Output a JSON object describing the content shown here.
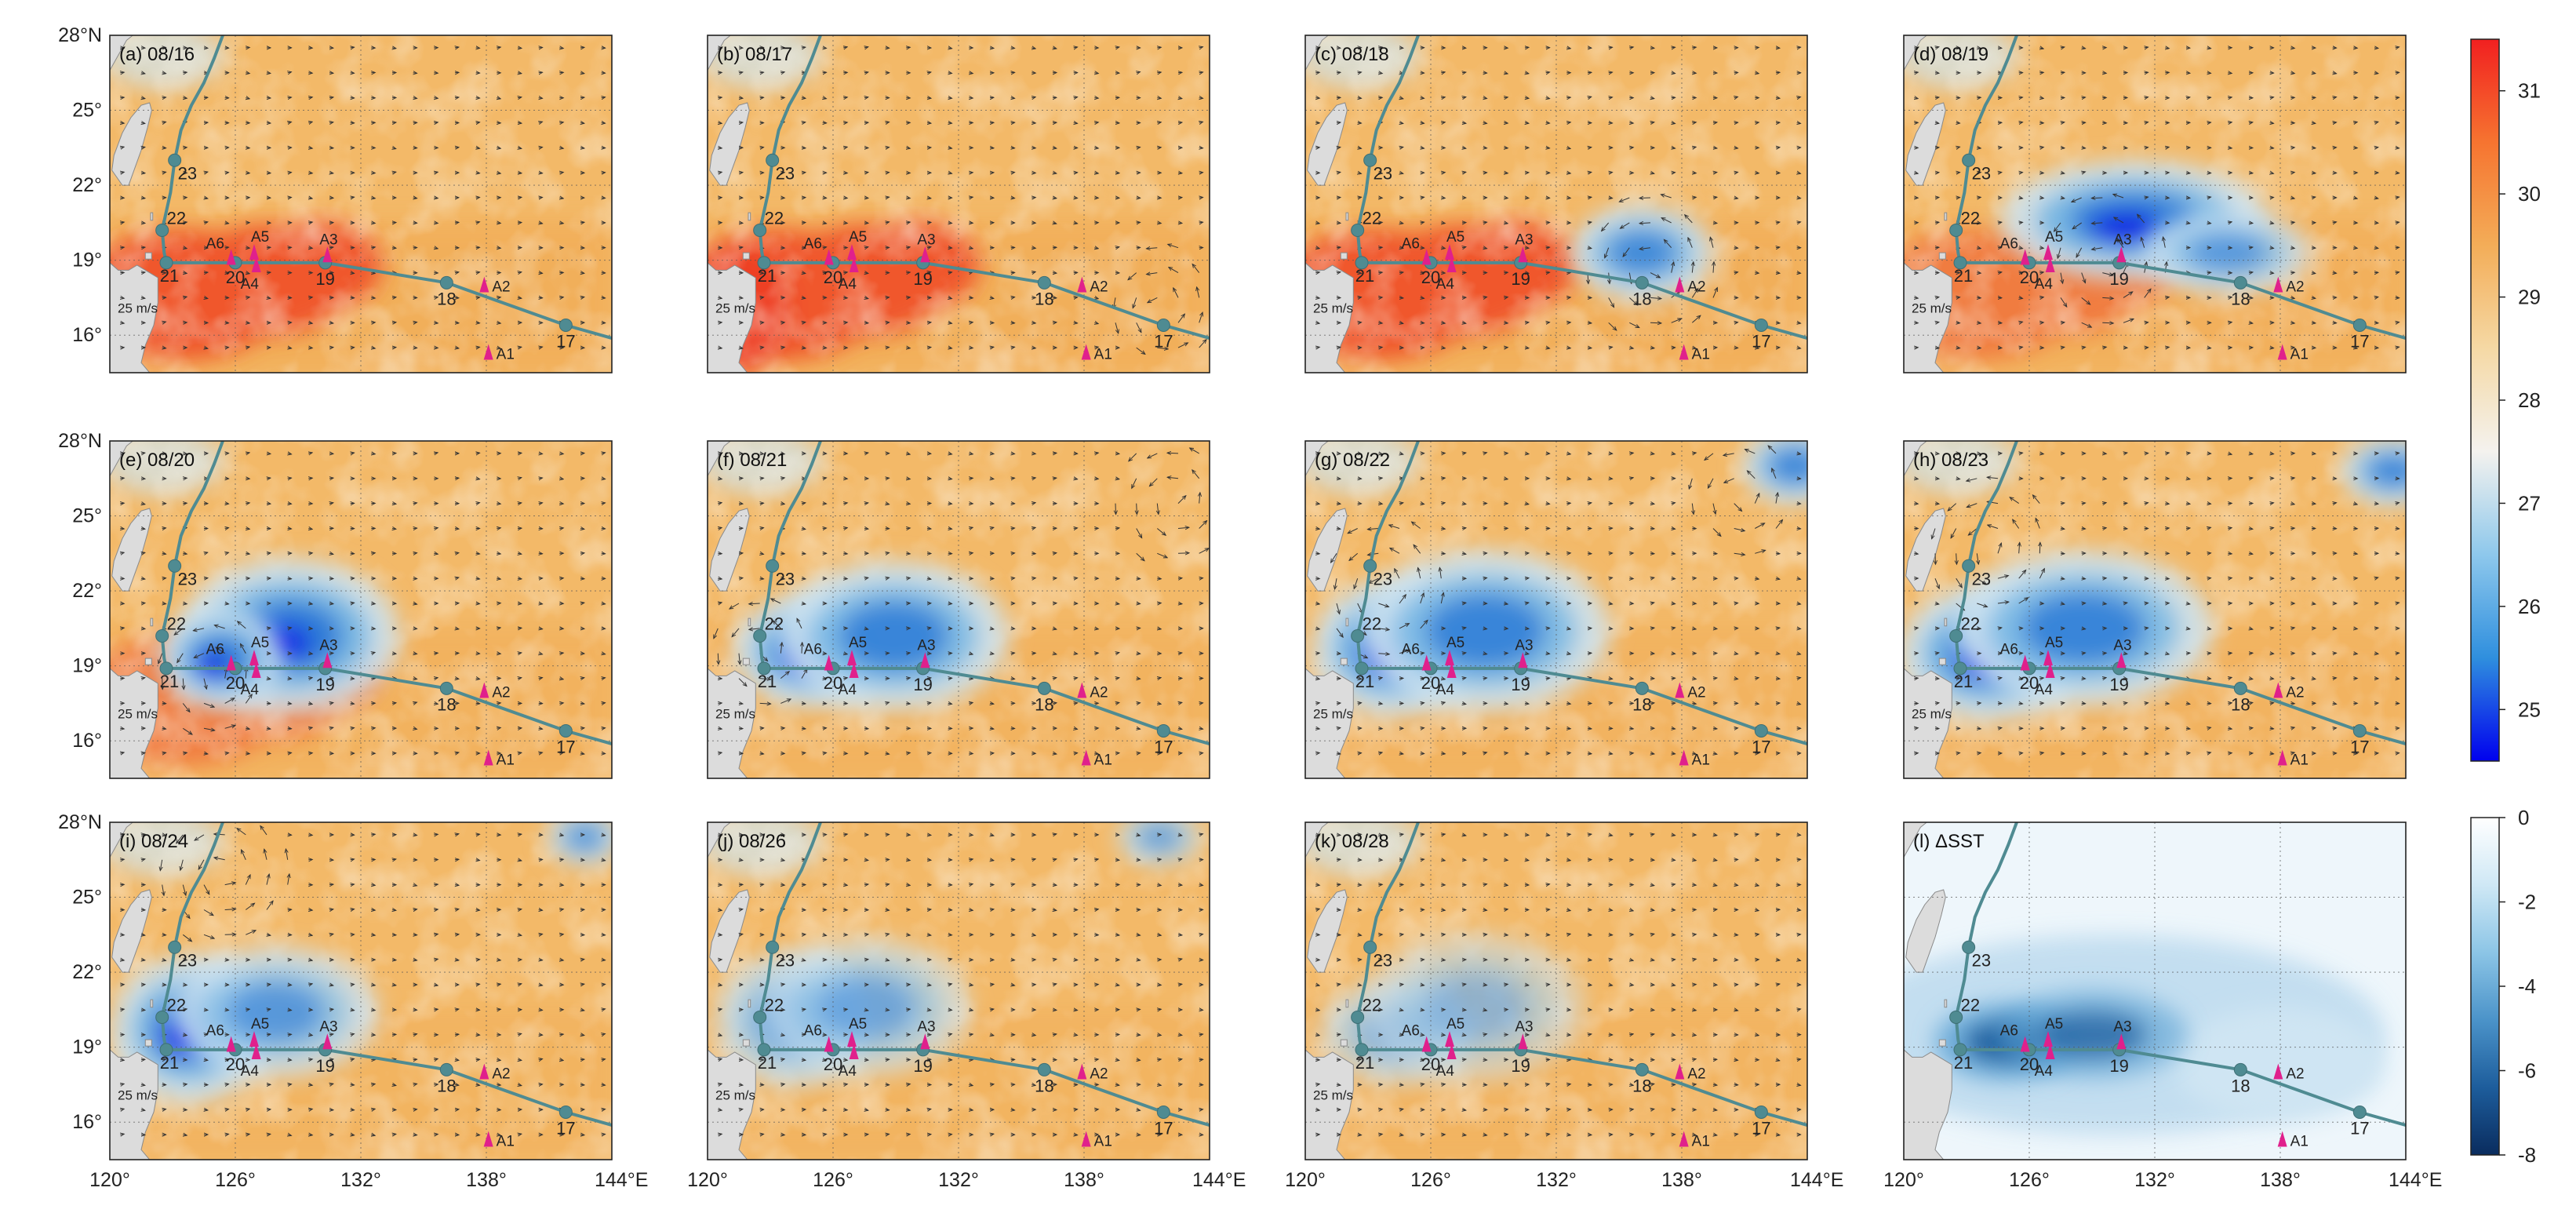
{
  "chart_data": {
    "type": "map-panels",
    "axis": {
      "lon_ticks": [
        "120°",
        "126°",
        "132°",
        "138°",
        "144°E"
      ],
      "lat_ticks": [
        "28°N",
        "25°",
        "22°",
        "19°",
        "16°"
      ],
      "lon_range": [
        120,
        144
      ],
      "lat_range": [
        14.5,
        28
      ]
    },
    "panels": [
      {
        "label": "(a) 08/16",
        "mode": "sst",
        "cold": [],
        "eddies": []
      },
      {
        "label": "(b) 08/17",
        "mode": "sst",
        "cold": [],
        "eddies": [
          [
            141.7,
            17.1,
            2.6
          ]
        ]
      },
      {
        "label": "(c) 08/18",
        "mode": "sst",
        "cold": [
          [
            136.1,
            19.3,
            3.0,
            1.6,
            0.75
          ]
        ],
        "eddies": [
          [
            136.6,
            18.7,
            3.2
          ]
        ]
      },
      {
        "label": "(d) 08/19",
        "mode": "sst",
        "cold": [
          [
            131.0,
            20.6,
            5.6,
            2.0,
            0.95
          ],
          [
            135.5,
            19.3,
            3.5,
            1.4,
            0.6
          ]
        ],
        "eddies": [
          [
            129.6,
            18.9,
            3.0
          ]
        ]
      },
      {
        "label": "(e) 08/20",
        "mode": "sst",
        "cold": [
          [
            128.6,
            20.2,
            4.6,
            2.6,
            0.95
          ],
          [
            125.3,
            19.3,
            2.6,
            1.7,
            0.9
          ]
        ],
        "eddies": [
          [
            124.9,
            18.6,
            2.6
          ]
        ]
      },
      {
        "label": "(f) 08/21",
        "mode": "sst",
        "cold": [
          [
            124.9,
            19.6,
            3.2,
            1.9,
            1.0
          ],
          [
            128.9,
            20.2,
            4.8,
            2.5,
            0.85
          ]
        ],
        "eddies": [
          [
            142.4,
            25.6,
            3.0
          ],
          [
            122.6,
            19.6,
            2.3
          ]
        ]
      },
      {
        "label": "(g) 08/22",
        "mode": "sst",
        "cold": [
          [
            124.2,
            19.7,
            3.4,
            2.3,
            1.0
          ],
          [
            128.6,
            20.4,
            5.2,
            2.7,
            0.85
          ],
          [
            143.4,
            27.0,
            2.2,
            1.3,
            0.8
          ]
        ],
        "eddies": [
          [
            140.8,
            25.8,
            2.6
          ],
          [
            123.7,
            22.1,
            3.0
          ]
        ]
      },
      {
        "label": "(h) 08/23",
        "mode": "sst",
        "cold": [
          [
            124.1,
            19.5,
            3.8,
            2.3,
            1.0
          ],
          [
            128.6,
            20.5,
            5.4,
            2.6,
            0.85
          ],
          [
            143.4,
            26.8,
            2.2,
            1.2,
            0.8
          ]
        ],
        "eddies": [
          [
            124.2,
            23.6,
            3.0
          ]
        ]
      },
      {
        "label": "(i) 08/24",
        "mode": "sst",
        "cold": [
          [
            123.8,
            19.7,
            3.3,
            2.5,
            0.9
          ],
          [
            127.9,
            20.4,
            4.3,
            2.2,
            0.6
          ],
          [
            142.7,
            27.4,
            1.6,
            1.0,
            0.6
          ]
        ],
        "eddies": [
          [
            125.4,
            26.0,
            3.2
          ]
        ]
      },
      {
        "label": "(j) 08/26",
        "mode": "sst",
        "cold": [
          [
            124.1,
            20.1,
            3.3,
            2.3,
            0.55
          ],
          [
            127.6,
            20.6,
            4.3,
            2.3,
            0.45
          ],
          [
            141.6,
            27.4,
            1.8,
            1.0,
            0.5
          ]
        ],
        "eddies": []
      },
      {
        "label": "(k) 08/28",
        "mode": "sst",
        "cold": [
          [
            124.4,
            19.6,
            3.3,
            1.8,
            0.4
          ],
          [
            128.1,
            20.6,
            4.6,
            2.5,
            0.3
          ]
        ],
        "eddies": []
      },
      {
        "label": "(l) ΔSST",
        "mode": "dsst",
        "cold": [
          [
            124.9,
            19.2,
            3.6,
            1.4,
            1.0
          ],
          [
            129.0,
            19.5,
            4.8,
            1.6,
            0.75
          ]
        ],
        "eddies": []
      }
    ],
    "track": {
      "lon": [
        145.2,
        141.8,
        136.1,
        130.3,
        126.0,
        122.7,
        122.6,
        122.5,
        122.9,
        123.1,
        123.4,
        123.9,
        124.5,
        125.0,
        125.4
      ],
      "lat": [
        15.6,
        16.4,
        18.1,
        18.9,
        18.9,
        18.9,
        19.3,
        20.2,
        21.7,
        23.0,
        24.2,
        25.2,
        26.1,
        27.1,
        28.0
      ],
      "day_points": [
        {
          "label": "17",
          "lon": 141.8,
          "lat": 16.4
        },
        {
          "label": "18",
          "lon": 136.1,
          "lat": 18.1
        },
        {
          "label": "19",
          "lon": 130.3,
          "lat": 18.9
        },
        {
          "label": "20",
          "lon": 126.0,
          "lat": 18.9
        },
        {
          "label": "21",
          "lon": 122.7,
          "lat": 18.9
        },
        {
          "label": "22",
          "lon": 122.5,
          "lat": 20.2
        },
        {
          "label": "23",
          "lon": 123.1,
          "lat": 23.0
        }
      ]
    },
    "stations": [
      {
        "label": "A1",
        "lon": 138.1,
        "lat": 15.3
      },
      {
        "label": "A2",
        "lon": 137.9,
        "lat": 18.0
      },
      {
        "label": "A3",
        "lon": 130.4,
        "lat": 19.2
      },
      {
        "label": "A4",
        "lon": 127.0,
        "lat": 18.8
      },
      {
        "label": "A5",
        "lon": 126.9,
        "lat": 19.3
      },
      {
        "label": "A6",
        "lon": 125.8,
        "lat": 19.1
      }
    ],
    "wind_scale_label": "25 m/s",
    "colorbars": [
      {
        "name": "SST",
        "range": [
          24.5,
          31.5
        ],
        "ticks": [
          "31",
          "30",
          "29",
          "28",
          "27",
          "26",
          "25"
        ],
        "tick_values": [
          31,
          30,
          29,
          28,
          27,
          26,
          25
        ],
        "colors": [
          "#f12020",
          "#f67430",
          "#f3ad58",
          "#f5d9a5",
          "#f4f2ee",
          "#8ec8ec",
          "#2f8fde",
          "#0000ee"
        ]
      },
      {
        "name": "ΔSST",
        "range": [
          -8,
          0
        ],
        "ticks": [
          "0",
          "-2",
          "-4",
          "-6",
          "-8"
        ],
        "tick_values": [
          0,
          -2,
          -4,
          -6,
          -8
        ],
        "colors": [
          "#ffffff",
          "#cfe8f5",
          "#8cc5e6",
          "#4b93c9",
          "#1d5d9c",
          "#0a2c5e"
        ]
      }
    ]
  },
  "colors": {
    "land": "#dcdcdc",
    "track": "#4f8b92",
    "station": "#e0208c",
    "warm": "#f3b968",
    "hot": "#f0522a"
  }
}
